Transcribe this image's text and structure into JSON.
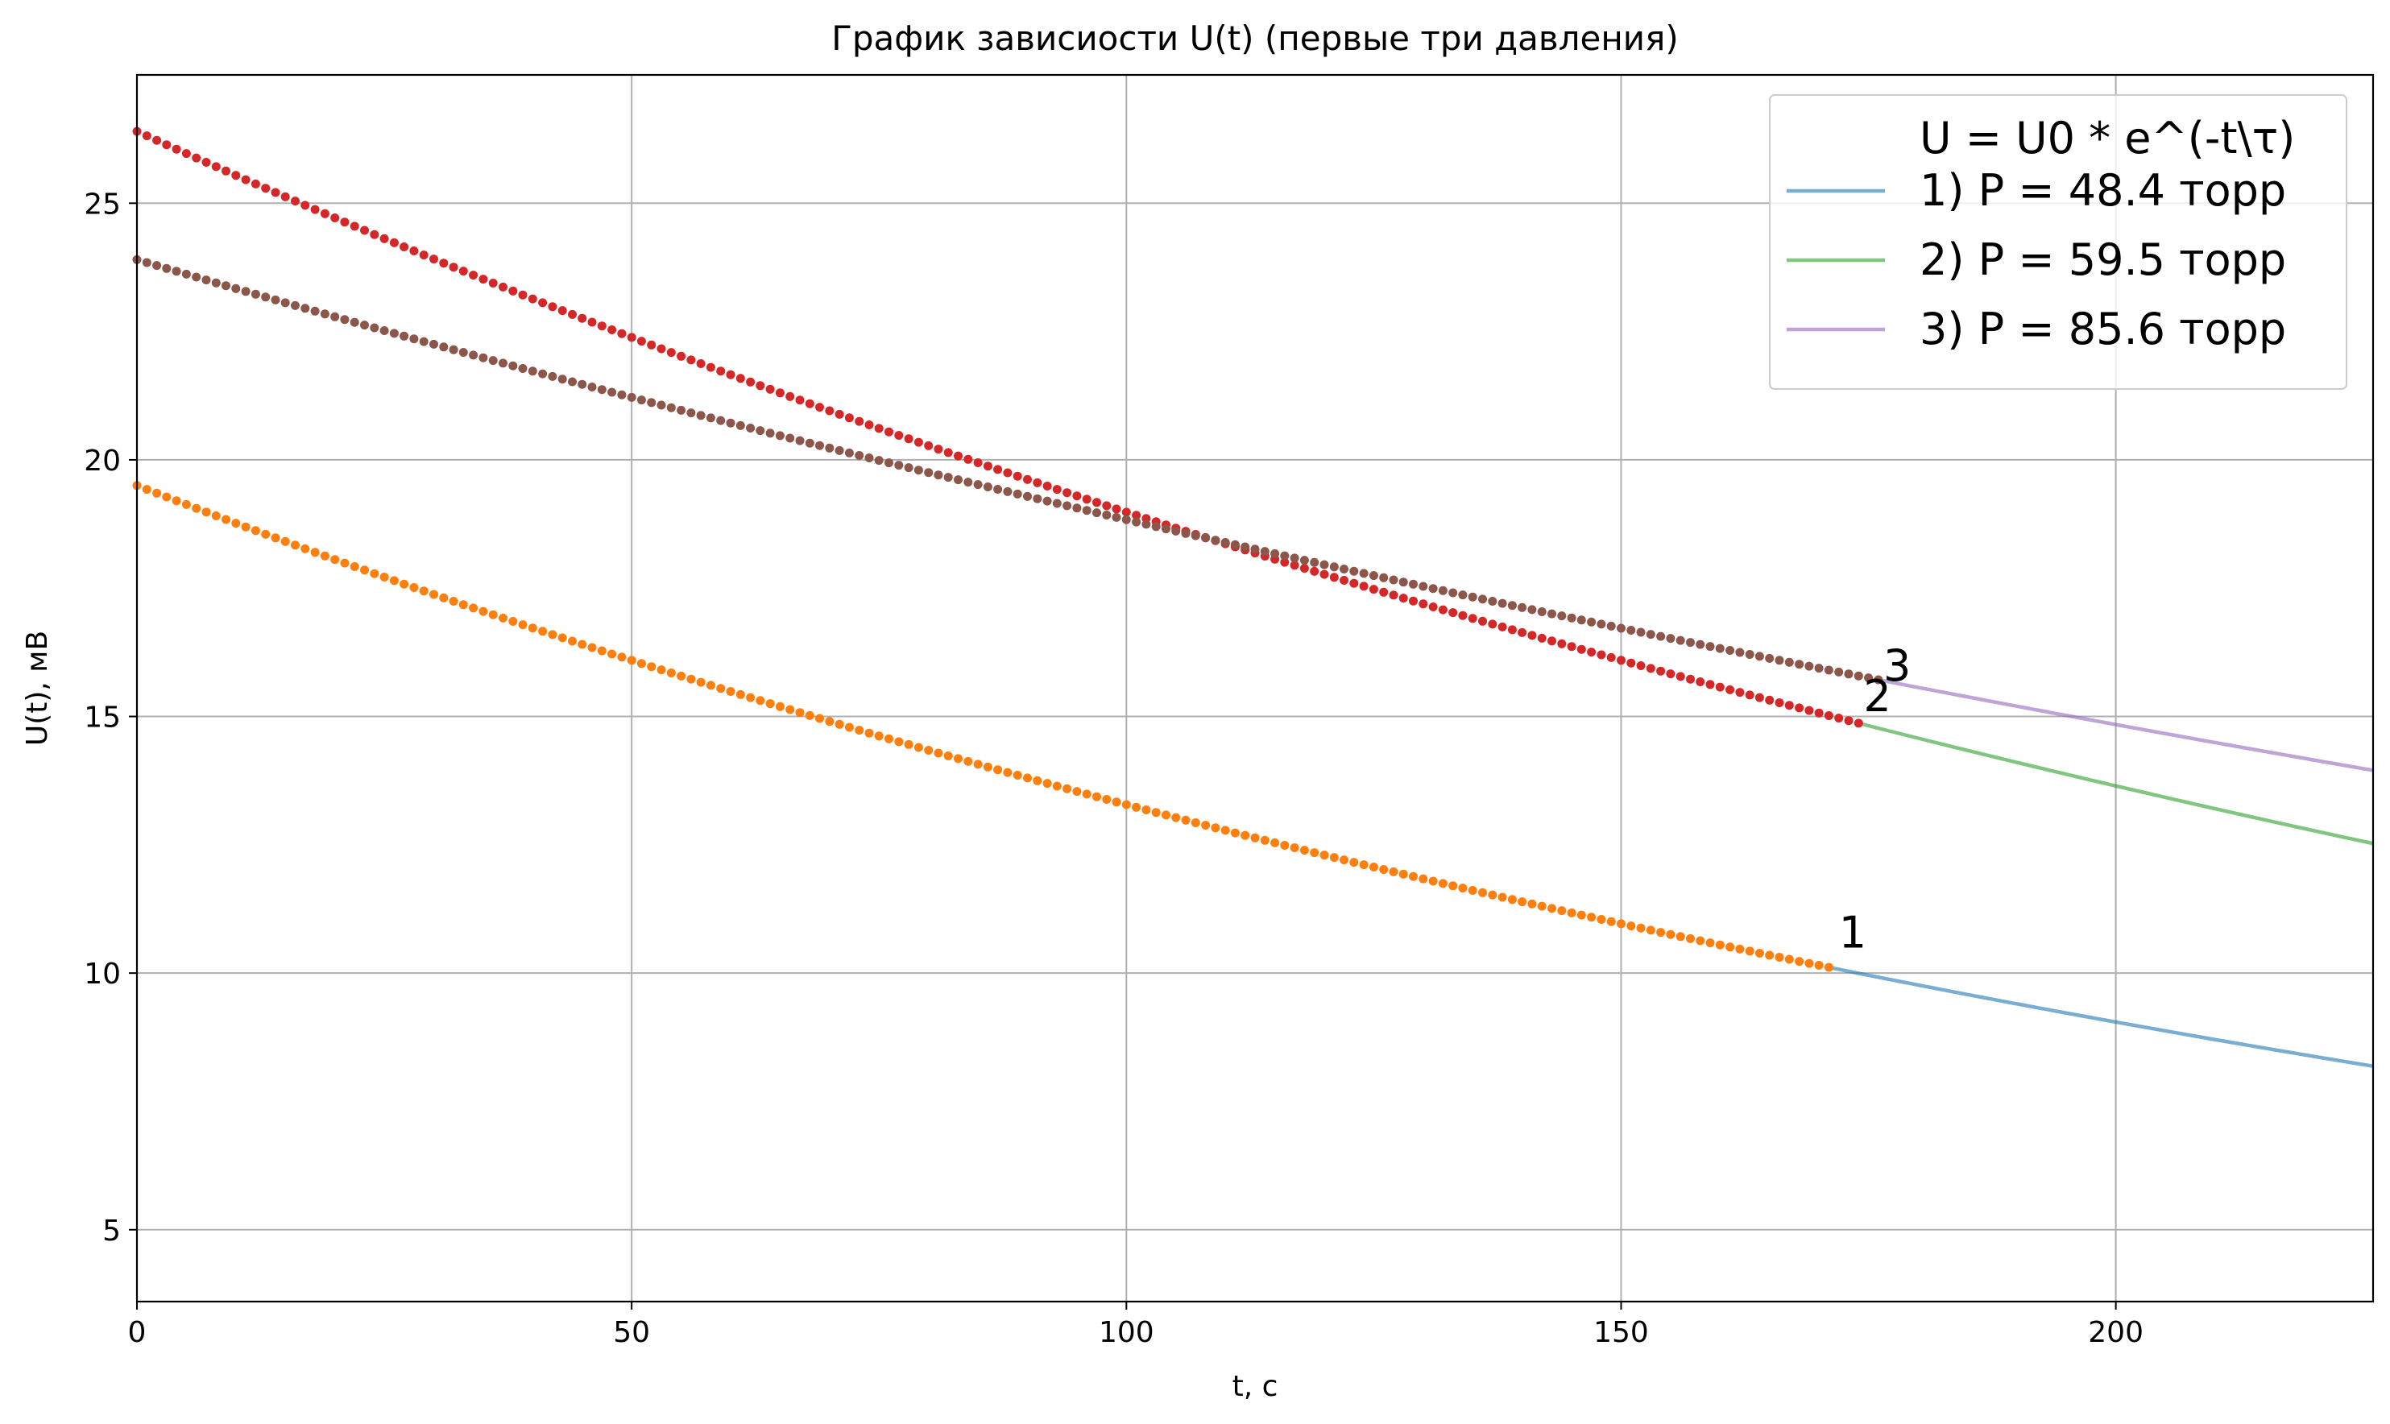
{
  "chart_data": {
    "type": "line",
    "title": "График зависиости U(t) (первые три давления)",
    "xlabel": "t, c",
    "ylabel": "U(t), мВ",
    "xlim": [
      0,
      226
    ],
    "ylim": [
      3.6,
      27.5
    ],
    "xticks": [
      0,
      50,
      100,
      150,
      200
    ],
    "yticks": [
      5,
      10,
      15,
      20,
      25
    ],
    "grid": true,
    "legend_position": "top-right",
    "legend_title": "U = U0 * e^(-t\\τ)",
    "series": [
      {
        "name": "1) P = 48.4 торр",
        "label": "1",
        "fit_color": "#1f77b4",
        "point_color": "#ff7f0e",
        "U0": 19.5,
        "tau": 260.4,
        "data_end": 171,
        "fit_end": 226,
        "label_at": [
          172,
          10.5
        ]
      },
      {
        "name": "2) P = 59.5 торр",
        "label": "2",
        "fit_color": "#2ca02c",
        "point_color": "#d62728",
        "U0": 26.4,
        "tau": 303.1,
        "data_end": 174,
        "fit_end": 226,
        "label_at": [
          174.5,
          15.1
        ]
      },
      {
        "name": "3) P = 85.6 торр",
        "label": "3",
        "fit_color": "#9467bd",
        "point_color": "#8c564b",
        "U0": 23.9,
        "tau": 419.8,
        "data_end": 176,
        "fit_end": 226,
        "label_at": [
          176.5,
          15.7
        ]
      }
    ]
  }
}
